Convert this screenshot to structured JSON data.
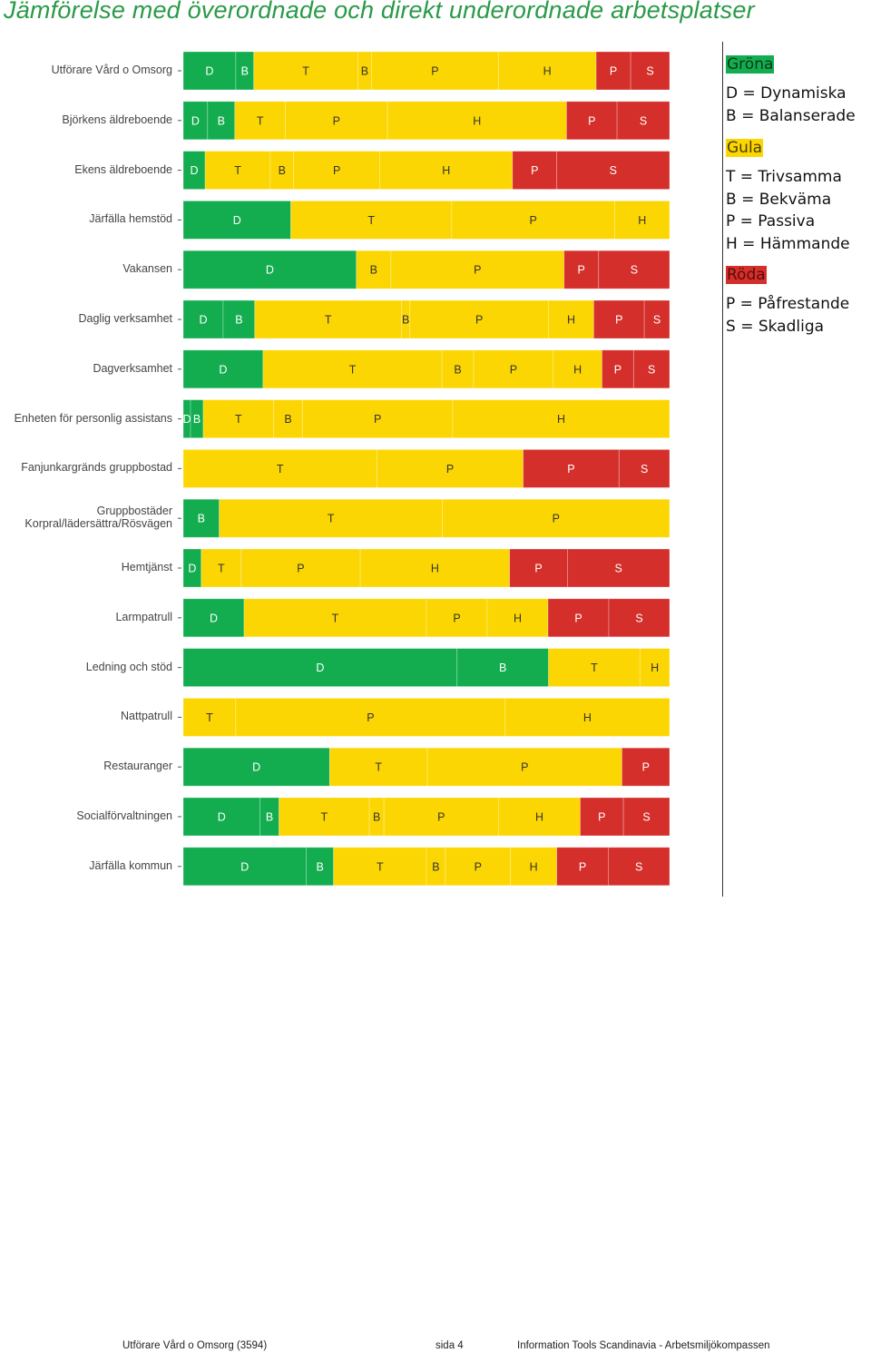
{
  "title": "Jämförelse med överordnade och direkt underordnade arbetsplatser",
  "colors": {
    "green": "#13ad4f",
    "yellow": "#fcd602",
    "red": "#d42f2b",
    "title": "#2a9a48"
  },
  "legend": {
    "groups": [
      {
        "heading": "Gröna",
        "color": "green",
        "items": [
          {
            "code": "D",
            "label": "Dynamiska"
          },
          {
            "code": "B",
            "label": "Balanserade"
          }
        ]
      },
      {
        "heading": "Gula",
        "color": "yellow",
        "items": [
          {
            "code": "T",
            "label": "Trivsamma"
          },
          {
            "code": "B",
            "label": "Bekväma"
          },
          {
            "code": "P",
            "label": "Passiva"
          },
          {
            "code": "H",
            "label": "Hämmande"
          }
        ]
      },
      {
        "heading": "Röda",
        "color": "red",
        "items": [
          {
            "code": "P",
            "label": "Påfrestande"
          },
          {
            "code": "S",
            "label": "Skadliga"
          }
        ]
      }
    ]
  },
  "chart_data": {
    "type": "bar",
    "orientation": "horizontal",
    "stacked": "100%",
    "categories": [
      "Utförare Vård o Omsorg",
      "Björkens äldreboende",
      "Ekens äldreboende",
      "Järfälla hemstöd",
      "Vakansen",
      "Daglig verksamhet",
      "Dagverksamhet",
      "Enheten för personlig assistans",
      "Fanjunkargränds gruppbostad",
      "Gruppbostäder Korpral/lädersättra/Rösvägen",
      "Hemtjänst",
      "Larmpatrull",
      "Ledning och stöd",
      "Nattpatrull",
      "Restauranger",
      "Socialförvaltningen",
      "Järfälla kommun"
    ],
    "rows": [
      {
        "segments": [
          {
            "code": "D",
            "color": "green",
            "value": 10.8
          },
          {
            "code": "B",
            "color": "green",
            "value": 3.7
          },
          {
            "code": "T",
            "color": "yellow",
            "value": 21.4
          },
          {
            "code": "B",
            "color": "yellow",
            "value": 2.8
          },
          {
            "code": "P",
            "color": "yellow",
            "value": 26.1
          },
          {
            "code": "H",
            "color": "yellow",
            "value": 20.1
          },
          {
            "code": "P",
            "color": "red",
            "value": 7.1
          },
          {
            "code": "S",
            "color": "red",
            "value": 8.0
          }
        ]
      },
      {
        "segments": [
          {
            "code": "D",
            "color": "green",
            "value": 5.0
          },
          {
            "code": "B",
            "color": "green",
            "value": 5.6
          },
          {
            "code": "T",
            "color": "yellow",
            "value": 10.4
          },
          {
            "code": "P",
            "color": "yellow",
            "value": 21.0
          },
          {
            "code": "H",
            "color": "yellow",
            "value": 36.8
          },
          {
            "code": "P",
            "color": "red",
            "value": 10.4
          },
          {
            "code": "S",
            "color": "red",
            "value": 10.8
          }
        ]
      },
      {
        "segments": [
          {
            "code": "D",
            "color": "green",
            "value": 4.5
          },
          {
            "code": "T",
            "color": "yellow",
            "value": 13.4
          },
          {
            "code": "B",
            "color": "yellow",
            "value": 4.8
          },
          {
            "code": "P",
            "color": "yellow",
            "value": 17.7
          },
          {
            "code": "H",
            "color": "yellow",
            "value": 27.3
          },
          {
            "code": "P",
            "color": "red",
            "value": 9.1
          },
          {
            "code": "S",
            "color": "red",
            "value": 23.2
          }
        ]
      },
      {
        "segments": [
          {
            "code": "D",
            "color": "green",
            "value": 22.1
          },
          {
            "code": "T",
            "color": "yellow",
            "value": 33.1
          },
          {
            "code": "P",
            "color": "yellow",
            "value": 33.5
          },
          {
            "code": "H",
            "color": "yellow",
            "value": 11.3
          }
        ]
      },
      {
        "segments": [
          {
            "code": "D",
            "color": "green",
            "value": 35.6
          },
          {
            "code": "B",
            "color": "yellow",
            "value": 7.1
          },
          {
            "code": "P",
            "color": "yellow",
            "value": 35.6
          },
          {
            "code": "P",
            "color": "red",
            "value": 7.1
          },
          {
            "code": "S",
            "color": "red",
            "value": 14.6
          }
        ]
      },
      {
        "segments": [
          {
            "code": "D",
            "color": "green",
            "value": 8.2
          },
          {
            "code": "B",
            "color": "green",
            "value": 6.5
          },
          {
            "code": "T",
            "color": "yellow",
            "value": 30.2
          },
          {
            "code": "B",
            "color": "yellow",
            "value": 1.7
          },
          {
            "code": "P",
            "color": "yellow",
            "value": 28.5
          },
          {
            "code": "H",
            "color": "yellow",
            "value": 9.3
          },
          {
            "code": "P",
            "color": "red",
            "value": 10.4
          },
          {
            "code": "S",
            "color": "red",
            "value": 5.2
          }
        ]
      },
      {
        "segments": [
          {
            "code": "D",
            "color": "green",
            "value": 16.4
          },
          {
            "code": "T",
            "color": "yellow",
            "value": 36.8
          },
          {
            "code": "B",
            "color": "yellow",
            "value": 6.5
          },
          {
            "code": "P",
            "color": "yellow",
            "value": 16.4
          },
          {
            "code": "H",
            "color": "yellow",
            "value": 10.0
          },
          {
            "code": "P",
            "color": "red",
            "value": 6.5
          },
          {
            "code": "S",
            "color": "red",
            "value": 7.4
          }
        ]
      },
      {
        "segments": [
          {
            "code": "D",
            "color": "green",
            "value": 1.5
          },
          {
            "code": "B",
            "color": "green",
            "value": 2.6
          },
          {
            "code": "T",
            "color": "yellow",
            "value": 14.5
          },
          {
            "code": "B",
            "color": "yellow",
            "value": 5.9
          },
          {
            "code": "P",
            "color": "yellow",
            "value": 30.9
          },
          {
            "code": "H",
            "color": "yellow",
            "value": 44.6
          }
        ]
      },
      {
        "segments": [
          {
            "code": "T",
            "color": "yellow",
            "value": 39.8
          },
          {
            "code": "P",
            "color": "yellow",
            "value": 30.1
          },
          {
            "code": "P",
            "color": "red",
            "value": 19.7
          },
          {
            "code": "S",
            "color": "red",
            "value": 10.4
          }
        ]
      },
      {
        "segments": [
          {
            "code": "B",
            "color": "green",
            "value": 7.4
          },
          {
            "code": "T",
            "color": "yellow",
            "value": 45.9
          },
          {
            "code": "P",
            "color": "yellow",
            "value": 46.7
          }
        ]
      },
      {
        "segments": [
          {
            "code": "D",
            "color": "green",
            "value": 3.7
          },
          {
            "code": "T",
            "color": "yellow",
            "value": 8.2
          },
          {
            "code": "P",
            "color": "yellow",
            "value": 24.5
          },
          {
            "code": "H",
            "color": "yellow",
            "value": 30.7
          },
          {
            "code": "P",
            "color": "red",
            "value": 11.9
          },
          {
            "code": "S",
            "color": "red",
            "value": 21.0
          }
        ]
      },
      {
        "segments": [
          {
            "code": "D",
            "color": "green",
            "value": 12.5
          },
          {
            "code": "T",
            "color": "yellow",
            "value": 37.5
          },
          {
            "code": "P",
            "color": "yellow",
            "value": 12.5
          },
          {
            "code": "H",
            "color": "yellow",
            "value": 12.5
          },
          {
            "code": "P",
            "color": "red",
            "value": 12.5
          },
          {
            "code": "S",
            "color": "red",
            "value": 12.5
          }
        ]
      },
      {
        "segments": [
          {
            "code": "D",
            "color": "green",
            "value": 56.3
          },
          {
            "code": "B",
            "color": "green",
            "value": 18.8
          },
          {
            "code": "T",
            "color": "yellow",
            "value": 18.8
          },
          {
            "code": "H",
            "color": "yellow",
            "value": 6.1
          }
        ]
      },
      {
        "segments": [
          {
            "code": "T",
            "color": "yellow",
            "value": 10.8
          },
          {
            "code": "P",
            "color": "yellow",
            "value": 55.4
          },
          {
            "code": "H",
            "color": "yellow",
            "value": 33.8
          }
        ]
      },
      {
        "segments": [
          {
            "code": "D",
            "color": "green",
            "value": 30.1
          },
          {
            "code": "T",
            "color": "yellow",
            "value": 20.1
          },
          {
            "code": "P",
            "color": "yellow",
            "value": 40.0
          },
          {
            "code": "P",
            "color": "red",
            "value": 9.8
          }
        ]
      },
      {
        "segments": [
          {
            "code": "D",
            "color": "green",
            "value": 15.8
          },
          {
            "code": "B",
            "color": "green",
            "value": 3.9
          },
          {
            "code": "T",
            "color": "yellow",
            "value": 18.6
          },
          {
            "code": "B",
            "color": "yellow",
            "value": 3.0
          },
          {
            "code": "P",
            "color": "yellow",
            "value": 23.6
          },
          {
            "code": "H",
            "color": "yellow",
            "value": 16.8
          },
          {
            "code": "P",
            "color": "red",
            "value": 8.9
          },
          {
            "code": "S",
            "color": "red",
            "value": 9.5
          }
        ]
      },
      {
        "segments": [
          {
            "code": "D",
            "color": "green",
            "value": 25.3
          },
          {
            "code": "B",
            "color": "green",
            "value": 5.6
          },
          {
            "code": "T",
            "color": "yellow",
            "value": 19.1
          },
          {
            "code": "B",
            "color": "yellow",
            "value": 3.9
          },
          {
            "code": "P",
            "color": "yellow",
            "value": 13.4
          },
          {
            "code": "H",
            "color": "yellow",
            "value": 9.5
          },
          {
            "code": "P",
            "color": "red",
            "value": 10.6
          },
          {
            "code": "S",
            "color": "red",
            "value": 12.6
          }
        ]
      }
    ]
  },
  "footer": {
    "left": "Utförare Vård o Omsorg (3594)",
    "center": "sida 4",
    "right": "Information Tools Scandinavia - Arbetsmiljökompassen"
  }
}
